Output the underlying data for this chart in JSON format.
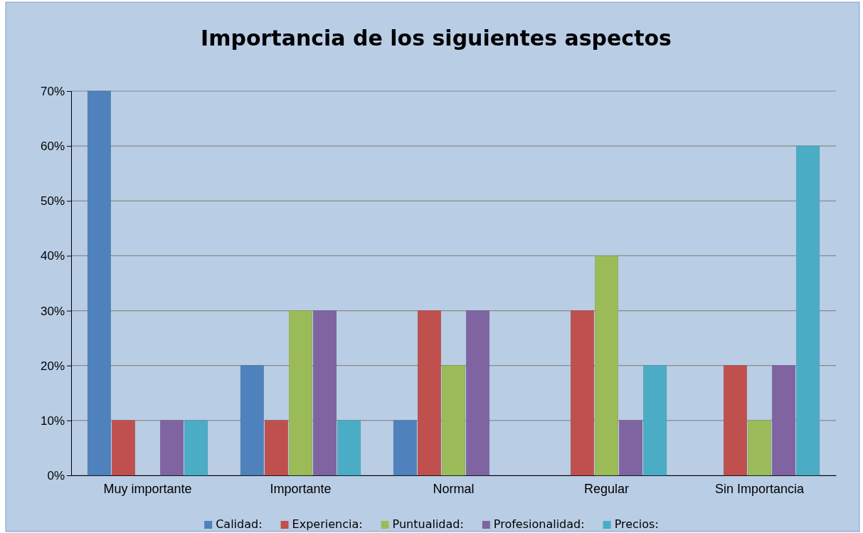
{
  "chart_data": {
    "type": "bar",
    "title": "Importancia de los siguientes aspectos",
    "categories": [
      "Muy importante",
      "Importante",
      "Normal",
      "Regular",
      "Sin Importancia"
    ],
    "series": [
      {
        "name": "Calidad:",
        "color": "#4f81bd",
        "values": [
          70,
          20,
          10,
          0,
          0
        ]
      },
      {
        "name": "Experiencia:",
        "color": "#c0504d",
        "values": [
          10,
          10,
          30,
          30,
          20
        ]
      },
      {
        "name": "Puntualidad:",
        "color": "#9bbb59",
        "values": [
          0,
          30,
          20,
          40,
          10
        ]
      },
      {
        "name": "Profesionalidad:",
        "color": "#8064a2",
        "values": [
          10,
          30,
          30,
          10,
          20
        ]
      },
      {
        "name": "Precios:",
        "color": "#4bacc6",
        "values": [
          10,
          10,
          0,
          20,
          60
        ]
      }
    ],
    "ylim": [
      0,
      70
    ],
    "yticks": [
      {
        "value": 0,
        "label": "0%"
      },
      {
        "value": 10,
        "label": "10%"
      },
      {
        "value": 20,
        "label": "20%"
      },
      {
        "value": 30,
        "label": "30%"
      },
      {
        "value": 40,
        "label": "40%"
      },
      {
        "value": 50,
        "label": "50%"
      },
      {
        "value": 60,
        "label": "60%"
      },
      {
        "value": 70,
        "label": "70%"
      }
    ],
    "grid": "y",
    "legend": "bottom"
  }
}
